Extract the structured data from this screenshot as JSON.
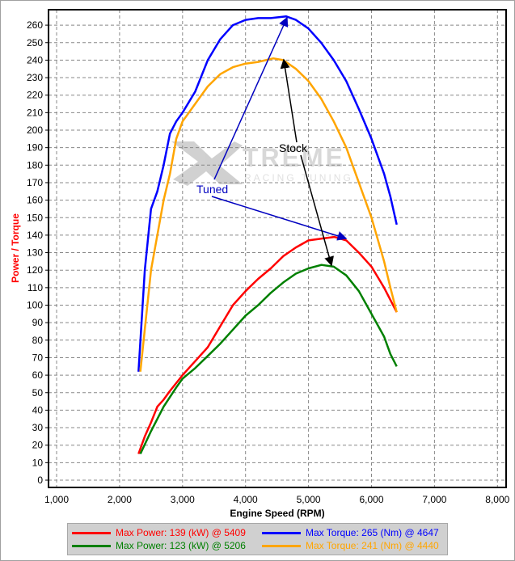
{
  "chart_data": {
    "type": "line",
    "xlabel": "Engine Speed (RPM)",
    "ylabel": "Power / Torque",
    "xlim": [
      1000,
      8000
    ],
    "ylim": [
      0,
      265
    ],
    "xticks": [
      "1,000",
      "2,000",
      "3,000",
      "4,000",
      "5,000",
      "6,000",
      "7,000",
      "8,000"
    ],
    "yticks": [
      0,
      10,
      20,
      30,
      40,
      50,
      60,
      70,
      80,
      90,
      100,
      110,
      120,
      130,
      140,
      150,
      160,
      170,
      180,
      190,
      200,
      210,
      220,
      230,
      240,
      250,
      260
    ],
    "grid": true,
    "legend_position": "bottom",
    "series": [
      {
        "name": "Max Power: 139 (kW) @ 5409",
        "color": "#ff0000",
        "x": [
          2300,
          2400,
          2500,
          2600,
          2700,
          2800,
          3000,
          3200,
          3400,
          3600,
          3800,
          4000,
          4200,
          4400,
          4600,
          4800,
          5000,
          5200,
          5409,
          5600,
          5800,
          6000,
          6200,
          6400
        ],
        "y": [
          15,
          25,
          33,
          42,
          46,
          51,
          60,
          68,
          76,
          88,
          100,
          108,
          115,
          121,
          128,
          133,
          137,
          138,
          139,
          137,
          130,
          122,
          110,
          96
        ]
      },
      {
        "name": "Max Power: 123 (kW) @ 5206",
        "color": "#008000",
        "x": [
          2330,
          2500,
          2700,
          2900,
          3000,
          3200,
          3400,
          3600,
          3800,
          4000,
          4200,
          4400,
          4600,
          4800,
          5000,
          5206,
          5400,
          5600,
          5800,
          6000,
          6200,
          6300,
          6400
        ],
        "y": [
          15,
          28,
          42,
          53,
          58,
          64,
          71,
          78,
          86,
          94,
          100,
          107,
          113,
          118,
          121,
          123,
          122,
          117,
          108,
          95,
          82,
          72,
          65
        ]
      },
      {
        "name": "Max Torque: 265 (Nm) @ 4647",
        "color": "#0000ff",
        "x": [
          2300,
          2400,
          2500,
          2600,
          2700,
          2800,
          2900,
          3000,
          3200,
          3400,
          3600,
          3800,
          4000,
          4200,
          4400,
          4647,
          4800,
          5000,
          5200,
          5400,
          5600,
          5800,
          6000,
          6200,
          6300,
          6400
        ],
        "y": [
          62,
          120,
          155,
          165,
          180,
          198,
          205,
          210,
          222,
          240,
          252,
          260,
          263,
          264,
          264,
          265,
          263,
          258,
          250,
          240,
          228,
          212,
          195,
          175,
          162,
          146
        ]
      },
      {
        "name": "Max Torque: 241 (Nm) @ 4440",
        "color": "#ffa500",
        "x": [
          2330,
          2500,
          2700,
          2800,
          2900,
          3000,
          3200,
          3400,
          3600,
          3800,
          4000,
          4200,
          4440,
          4600,
          4800,
          5000,
          5200,
          5400,
          5600,
          5800,
          6000,
          6200,
          6300,
          6400
        ],
        "y": [
          62,
          120,
          160,
          175,
          195,
          205,
          215,
          225,
          232,
          236,
          238,
          239,
          241,
          240,
          235,
          228,
          218,
          205,
          190,
          170,
          150,
          125,
          110,
          96
        ]
      }
    ],
    "annotations": [
      {
        "text": "Tuned",
        "color": "#0000c0"
      },
      {
        "text": "Stock",
        "color": "#000000"
      }
    ],
    "watermark": "XTREME RACING TUNING"
  }
}
